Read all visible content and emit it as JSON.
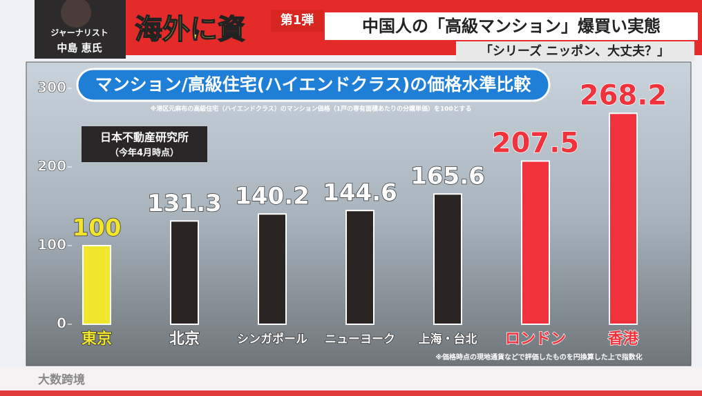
{
  "banner": {
    "headline_fragment": "海外に資",
    "series_tag": "第1弾",
    "headline": "中国人の「高級マンション」爆買い実態",
    "series_name": "「シリーズ ニッポン、大丈夫？」",
    "guest_role": "ジャーナリスト",
    "guest_name": "中島 恵氏"
  },
  "chart_data": {
    "type": "bar",
    "title": "マンション/高級住宅(ハイエンドクラス)の価格水準比較",
    "note": "※港区元麻布の高級住宅（ハイエンドクラス）のマンション価格（1戸の専有面積あたりの分譲単価）を100とする",
    "source": "日本不動産研究所",
    "source_date": "（今年4月時点）",
    "footnote": "※価格時点の現地通貨などで評価したものを円換算した上で指数化",
    "categories": [
      "東京",
      "北京",
      "シンガポール",
      "ニューヨーク",
      "上海・台北",
      "ロンドン",
      "香港"
    ],
    "values": [
      100,
      131.3,
      140.2,
      144.6,
      165.6,
      207.5,
      268.2
    ],
    "colors": [
      "#f2e52e",
      "#2a2422",
      "#2a2422",
      "#2a2422",
      "#2a2422",
      "#f0323c",
      "#f0323c"
    ],
    "ylim": [
      0,
      300
    ],
    "yticks": [
      0,
      100,
      200,
      300
    ]
  },
  "logo": "大数跨境"
}
